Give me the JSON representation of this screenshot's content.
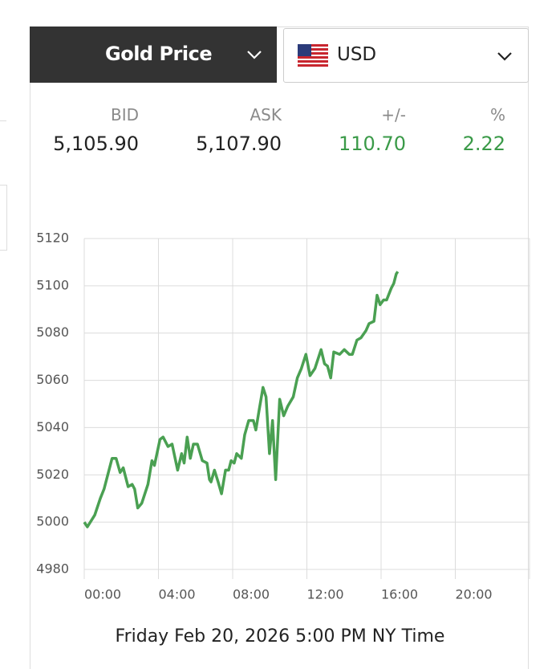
{
  "header": {
    "title": "Gold Price",
    "currency": "USD"
  },
  "quote": {
    "labels": [
      "BID",
      "ASK",
      "+/-",
      "%"
    ],
    "values": [
      "5,105.90",
      "5,107.90",
      "110.70",
      "2.22"
    ]
  },
  "chart_data": {
    "type": "line",
    "caption": "Friday Feb 20, 2026 5:00 PM NY Time",
    "x": [
      0,
      10,
      34,
      52,
      64,
      90,
      103,
      116,
      126,
      142,
      155,
      163,
      173,
      186,
      206,
      219,
      227,
      245,
      255,
      271,
      284,
      302,
      315,
      323,
      333,
      343,
      353,
      366,
      382,
      397,
      405,
      410,
      421,
      433,
      444,
      457,
      467,
      475,
      485,
      493,
      508,
      519,
      532,
      547,
      555,
      565,
      578,
      588,
      599,
      609,
      619,
      632,
      645,
      658,
      676,
      689,
      702,
      717,
      730,
      746,
      766,
      777,
      787,
      797,
      807,
      826,
      841,
      857,
      867,
      882,
      895,
      911,
      921,
      937,
      947,
      957,
      968,
      978,
      993,
      1001,
      1009,
      1014
    ],
    "series": [
      {
        "color": "#4aa052",
        "values": [
          5000,
          4998,
          5003,
          5010,
          5014,
          5027,
          5027,
          5021,
          5023,
          5015,
          5016,
          5014,
          5006,
          5008,
          5016,
          5026,
          5024,
          5035,
          5036,
          5032,
          5033,
          5022,
          5029,
          5025,
          5036,
          5027,
          5033,
          5033,
          5026,
          5025,
          5018,
          5017,
          5022,
          5017,
          5012,
          5022,
          5022,
          5026,
          5025,
          5029,
          5027,
          5037,
          5043,
          5043,
          5039,
          5047,
          5057,
          5053,
          5029,
          5043,
          5018,
          5052,
          5045,
          5049,
          5053,
          5061,
          5065,
          5071,
          5062,
          5065,
          5073,
          5067,
          5066,
          5061,
          5072,
          5071,
          5073,
          5071,
          5071,
          5077,
          5078,
          5081,
          5084,
          5085,
          5096,
          5092,
          5094,
          5094,
          5099,
          5101,
          5105,
          5106
        ]
      }
    ],
    "xlim": [
      0,
      1440
    ],
    "xticks": [
      {
        "value": 0,
        "label": "00:00"
      },
      {
        "value": 240,
        "label": "04:00"
      },
      {
        "value": 480,
        "label": "08:00"
      },
      {
        "value": 720,
        "label": "12:00"
      },
      {
        "value": 960,
        "label": "16:00"
      },
      {
        "value": 1200,
        "label": "20:00"
      },
      {
        "value": 1440,
        "label": ""
      }
    ],
    "ylim": [
      4980,
      5120
    ],
    "yticks": [
      4980,
      5000,
      5020,
      5040,
      5060,
      5080,
      5100,
      5120
    ],
    "grid": true
  }
}
